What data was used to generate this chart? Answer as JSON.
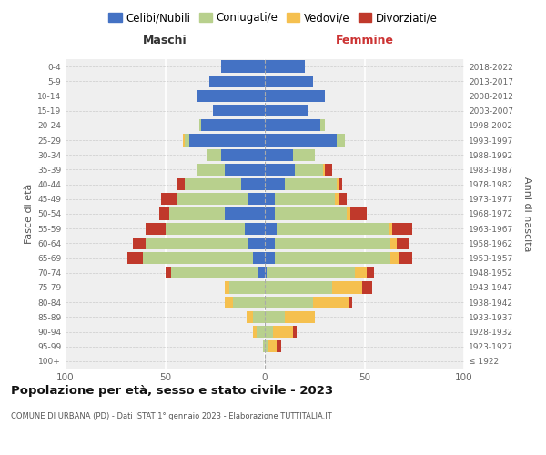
{
  "age_groups": [
    "100+",
    "95-99",
    "90-94",
    "85-89",
    "80-84",
    "75-79",
    "70-74",
    "65-69",
    "60-64",
    "55-59",
    "50-54",
    "45-49",
    "40-44",
    "35-39",
    "30-34",
    "25-29",
    "20-24",
    "15-19",
    "10-14",
    "5-9",
    "0-4"
  ],
  "birth_years": [
    "≤ 1922",
    "1923-1927",
    "1928-1932",
    "1933-1937",
    "1938-1942",
    "1943-1947",
    "1948-1952",
    "1953-1957",
    "1958-1962",
    "1963-1967",
    "1968-1972",
    "1973-1977",
    "1978-1982",
    "1983-1987",
    "1988-1992",
    "1993-1997",
    "1998-2002",
    "2003-2007",
    "2008-2012",
    "2013-2017",
    "2018-2022"
  ],
  "male_celibi": [
    0,
    0,
    0,
    0,
    0,
    0,
    3,
    6,
    8,
    10,
    20,
    8,
    12,
    20,
    22,
    38,
    32,
    26,
    34,
    28,
    22
  ],
  "male_coniugati": [
    0,
    1,
    4,
    6,
    16,
    18,
    44,
    55,
    52,
    40,
    28,
    36,
    28,
    14,
    7,
    2,
    1,
    0,
    0,
    0,
    0
  ],
  "male_vedovi": [
    0,
    0,
    2,
    3,
    4,
    2,
    0,
    0,
    0,
    0,
    0,
    0,
    0,
    0,
    0,
    1,
    0,
    0,
    0,
    0,
    0
  ],
  "male_divorziati": [
    0,
    0,
    0,
    0,
    0,
    0,
    3,
    8,
    6,
    10,
    5,
    8,
    4,
    0,
    0,
    0,
    0,
    0,
    0,
    0,
    0
  ],
  "female_nubili": [
    0,
    0,
    0,
    0,
    0,
    0,
    1,
    5,
    5,
    6,
    5,
    5,
    10,
    15,
    14,
    36,
    28,
    22,
    30,
    24,
    20
  ],
  "female_coniugate": [
    0,
    2,
    4,
    10,
    24,
    34,
    44,
    58,
    58,
    56,
    36,
    30,
    26,
    14,
    11,
    4,
    2,
    0,
    0,
    0,
    0
  ],
  "female_vedove": [
    0,
    4,
    10,
    15,
    18,
    15,
    6,
    4,
    3,
    2,
    2,
    2,
    1,
    1,
    0,
    0,
    0,
    0,
    0,
    0,
    0
  ],
  "female_divorziate": [
    0,
    2,
    2,
    0,
    2,
    5,
    4,
    7,
    6,
    10,
    8,
    4,
    2,
    4,
    0,
    0,
    0,
    0,
    0,
    0,
    0
  ],
  "color_celibi": "#4472c4",
  "color_coniugati": "#b8d08d",
  "color_vedovi": "#f5c04f",
  "color_divorziati": "#c0392b",
  "xlim": 100,
  "title": "Popolazione per età, sesso e stato civile - 2023",
  "subtitle": "COMUNE DI URBANA (PD) - Dati ISTAT 1° gennaio 2023 - Elaborazione TUTTITALIA.IT",
  "ylabel_left": "Fasce di età",
  "ylabel_right": "Anni di nascita",
  "label_maschi": "Maschi",
  "label_femmine": "Femmine",
  "legend_labels": [
    "Celibi/Nubili",
    "Coniugati/e",
    "Vedovi/e",
    "Divorziati/e"
  ],
  "bg_color": "#efefef"
}
